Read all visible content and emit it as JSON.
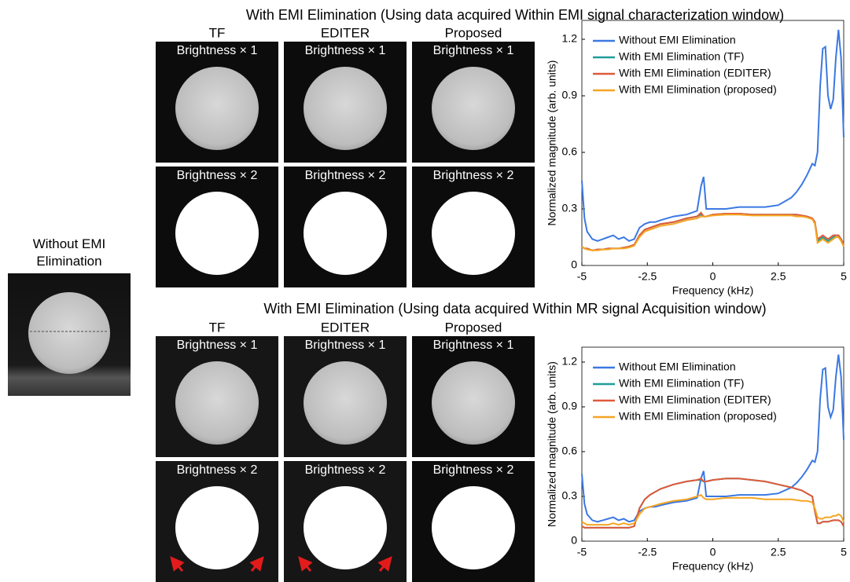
{
  "left": {
    "title": "Without EMI Elimination"
  },
  "panels": [
    {
      "title": "With EMI Elimination (Using data acquired Within EMI signal characterization window)",
      "columns": [
        "TF",
        "EDITER",
        "Proposed"
      ],
      "rows": [
        "Brightness × 1",
        "Brightness × 2"
      ]
    },
    {
      "title": "With EMI Elimination (Using data acquired Within MR signal Acquisition window)",
      "columns": [
        "TF",
        "EDITER",
        "Proposed"
      ],
      "rows": [
        "Brightness × 1",
        "Brightness × 2"
      ]
    }
  ],
  "chart_data": [
    {
      "type": "line",
      "x_label": "Frequency (kHz)",
      "y_label": "Normalized magnitude (arb. units)",
      "xlim": [
        -5,
        5
      ],
      "xticks": [
        -5,
        -2.5,
        0,
        2.5,
        5
      ],
      "ylim": [
        0,
        1.3
      ],
      "yticks": [
        0,
        0.3,
        0.6,
        0.9,
        1.2
      ],
      "legend": "upper left",
      "x": [
        -5,
        -4.9,
        -4.8,
        -4.6,
        -4.4,
        -4.2,
        -4,
        -3.8,
        -3.6,
        -3.4,
        -3.2,
        -3,
        -2.8,
        -2.6,
        -2.4,
        -2.2,
        -2,
        -1.5,
        -1,
        -0.6,
        -0.45,
        -0.35,
        -0.25,
        0,
        0.5,
        1,
        1.5,
        2,
        2.5,
        3,
        3.2,
        3.4,
        3.6,
        3.8,
        3.9,
        4,
        4.1,
        4.2,
        4.3,
        4.4,
        4.5,
        4.6,
        4.7,
        4.8,
        4.9,
        5
      ],
      "series": [
        {
          "name": "Without EMI Elimination",
          "color": "#3b78e3",
          "values": [
            0.45,
            0.25,
            0.18,
            0.14,
            0.13,
            0.14,
            0.15,
            0.16,
            0.14,
            0.15,
            0.13,
            0.14,
            0.2,
            0.22,
            0.23,
            0.23,
            0.24,
            0.26,
            0.27,
            0.29,
            0.42,
            0.47,
            0.3,
            0.3,
            0.3,
            0.31,
            0.31,
            0.31,
            0.32,
            0.36,
            0.39,
            0.43,
            0.48,
            0.54,
            0.53,
            0.6,
            0.95,
            1.15,
            1.16,
            0.9,
            0.83,
            0.88,
            1.1,
            1.25,
            1.1,
            0.68
          ]
        },
        {
          "name": "With EMI Elimination (TF)",
          "color": "#1f9e9a",
          "values": [
            0.1,
            0.09,
            0.09,
            0.08,
            0.085,
            0.085,
            0.09,
            0.09,
            0.09,
            0.095,
            0.1,
            0.11,
            0.16,
            0.19,
            0.2,
            0.21,
            0.22,
            0.23,
            0.25,
            0.26,
            0.27,
            0.26,
            0.26,
            0.27,
            0.275,
            0.275,
            0.27,
            0.27,
            0.27,
            0.27,
            0.27,
            0.265,
            0.26,
            0.25,
            0.23,
            0.13,
            0.14,
            0.15,
            0.14,
            0.13,
            0.14,
            0.15,
            0.16,
            0.16,
            0.14,
            0.11
          ]
        },
        {
          "name": "With EMI Elimination (EDITER)",
          "color": "#e05a3a",
          "values": [
            0.1,
            0.09,
            0.09,
            0.08,
            0.085,
            0.085,
            0.09,
            0.09,
            0.09,
            0.095,
            0.1,
            0.11,
            0.16,
            0.19,
            0.2,
            0.21,
            0.22,
            0.23,
            0.25,
            0.26,
            0.28,
            0.26,
            0.26,
            0.27,
            0.275,
            0.275,
            0.27,
            0.27,
            0.27,
            0.27,
            0.27,
            0.265,
            0.26,
            0.25,
            0.23,
            0.14,
            0.15,
            0.16,
            0.15,
            0.14,
            0.15,
            0.16,
            0.16,
            0.16,
            0.14,
            0.11
          ]
        },
        {
          "name": "With EMI Elimination (proposed)",
          "color": "#f5a623",
          "values": [
            0.1,
            0.09,
            0.085,
            0.08,
            0.08,
            0.085,
            0.085,
            0.09,
            0.09,
            0.09,
            0.095,
            0.105,
            0.15,
            0.18,
            0.19,
            0.2,
            0.21,
            0.22,
            0.24,
            0.25,
            0.26,
            0.26,
            0.26,
            0.265,
            0.27,
            0.27,
            0.265,
            0.265,
            0.265,
            0.265,
            0.26,
            0.26,
            0.255,
            0.245,
            0.22,
            0.12,
            0.13,
            0.14,
            0.13,
            0.12,
            0.13,
            0.14,
            0.15,
            0.15,
            0.13,
            0.1
          ]
        }
      ]
    },
    {
      "type": "line",
      "x_label": "Frequency (kHz)",
      "y_label": "Normalized magnitude (arb. units)",
      "xlim": [
        -5,
        5
      ],
      "xticks": [
        -5,
        -2.5,
        0,
        2.5,
        5
      ],
      "ylim": [
        0,
        1.3
      ],
      "yticks": [
        0,
        0.3,
        0.6,
        0.9,
        1.2
      ],
      "legend": "upper left",
      "x": [
        -5,
        -4.9,
        -4.8,
        -4.6,
        -4.4,
        -4.2,
        -4,
        -3.8,
        -3.6,
        -3.4,
        -3.2,
        -3,
        -2.8,
        -2.6,
        -2.4,
        -2.2,
        -2,
        -1.5,
        -1,
        -0.6,
        -0.45,
        -0.35,
        -0.25,
        0,
        0.5,
        1,
        1.5,
        2,
        2.5,
        3,
        3.2,
        3.4,
        3.6,
        3.8,
        3.9,
        4,
        4.1,
        4.2,
        4.3,
        4.4,
        4.5,
        4.6,
        4.7,
        4.8,
        4.9,
        5
      ],
      "series": [
        {
          "name": "Without EMI Elimination",
          "color": "#3b78e3",
          "values": [
            0.45,
            0.25,
            0.18,
            0.14,
            0.13,
            0.14,
            0.15,
            0.16,
            0.14,
            0.15,
            0.13,
            0.14,
            0.2,
            0.22,
            0.23,
            0.23,
            0.24,
            0.26,
            0.27,
            0.29,
            0.42,
            0.47,
            0.3,
            0.3,
            0.3,
            0.31,
            0.31,
            0.31,
            0.32,
            0.36,
            0.39,
            0.43,
            0.48,
            0.54,
            0.53,
            0.6,
            0.95,
            1.15,
            1.16,
            0.9,
            0.83,
            0.88,
            1.1,
            1.25,
            1.1,
            0.68
          ]
        },
        {
          "name": "With EMI Elimination (TF)",
          "color": "#1f9e9a",
          "values": [
            0.1,
            0.09,
            0.09,
            0.09,
            0.09,
            0.09,
            0.09,
            0.09,
            0.09,
            0.09,
            0.09,
            0.1,
            0.22,
            0.28,
            0.31,
            0.33,
            0.35,
            0.38,
            0.4,
            0.41,
            0.41,
            0.4,
            0.4,
            0.41,
            0.42,
            0.42,
            0.41,
            0.4,
            0.38,
            0.36,
            0.35,
            0.34,
            0.32,
            0.3,
            0.2,
            0.12,
            0.12,
            0.13,
            0.13,
            0.13,
            0.135,
            0.14,
            0.14,
            0.14,
            0.13,
            0.1
          ]
        },
        {
          "name": "With EMI Elimination (EDITER)",
          "color": "#e05a3a",
          "values": [
            0.1,
            0.09,
            0.09,
            0.09,
            0.09,
            0.09,
            0.09,
            0.09,
            0.09,
            0.09,
            0.09,
            0.1,
            0.22,
            0.28,
            0.31,
            0.33,
            0.35,
            0.38,
            0.4,
            0.41,
            0.42,
            0.4,
            0.4,
            0.41,
            0.42,
            0.42,
            0.41,
            0.4,
            0.38,
            0.36,
            0.35,
            0.34,
            0.32,
            0.3,
            0.2,
            0.12,
            0.12,
            0.13,
            0.13,
            0.13,
            0.135,
            0.14,
            0.14,
            0.14,
            0.13,
            0.1
          ]
        },
        {
          "name": "With EMI Elimination (proposed)",
          "color": "#f5a623",
          "values": [
            0.13,
            0.12,
            0.11,
            0.11,
            0.11,
            0.11,
            0.11,
            0.12,
            0.11,
            0.12,
            0.11,
            0.12,
            0.18,
            0.22,
            0.23,
            0.24,
            0.25,
            0.27,
            0.28,
            0.3,
            0.31,
            0.29,
            0.28,
            0.28,
            0.29,
            0.29,
            0.29,
            0.28,
            0.28,
            0.28,
            0.275,
            0.27,
            0.27,
            0.26,
            0.22,
            0.16,
            0.15,
            0.15,
            0.16,
            0.16,
            0.16,
            0.17,
            0.17,
            0.18,
            0.17,
            0.13
          ]
        }
      ]
    }
  ]
}
